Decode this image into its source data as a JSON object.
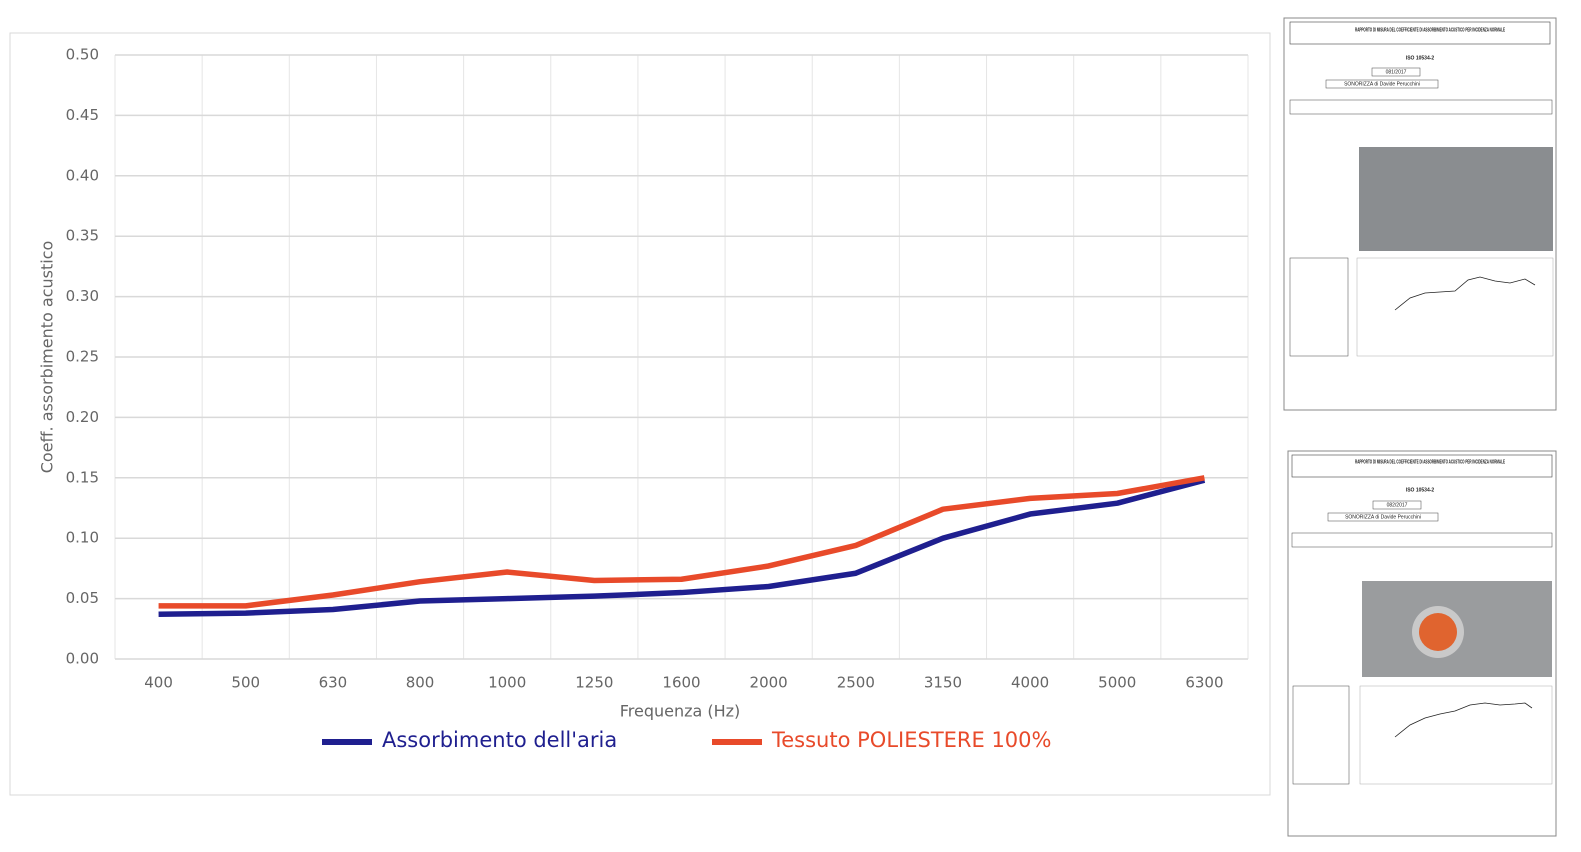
{
  "chart_data": {
    "type": "line",
    "x_label": "Frequenza (Hz)",
    "y_label": "Coeff. assorbimento acustico",
    "categories": [
      "400",
      "500",
      "630",
      "800",
      "1000",
      "1250",
      "1600",
      "2000",
      "2500",
      "3150",
      "4000",
      "5000",
      "6300"
    ],
    "series": [
      {
        "name": "Assorbimento dell'aria",
        "color": "#1f1f8f",
        "values": [
          0.037,
          0.038,
          0.041,
          0.048,
          0.05,
          0.052,
          0.055,
          0.06,
          0.071,
          0.1,
          0.12,
          0.129,
          0.148
        ]
      },
      {
        "name": "Tessuto POLIESTERE 100%",
        "color": "#e84a2a",
        "values": [
          0.044,
          0.044,
          0.053,
          0.064,
          0.072,
          0.065,
          0.066,
          0.077,
          0.094,
          0.124,
          0.133,
          0.137,
          0.15
        ]
      }
    ],
    "ylim": [
      0,
      0.5
    ],
    "yticks": [
      {
        "value": 0,
        "label": "0.00"
      },
      0.05,
      {
        "value": 0.1,
        "label": "0.10"
      },
      0.15,
      {
        "value": 0.2,
        "label": "0.20"
      },
      0.25,
      {
        "value": 0.3,
        "label": "0.30"
      },
      0.35,
      {
        "value": 0.4,
        "label": "0.40"
      },
      0.45,
      {
        "value": 0.5,
        "label": "0.50"
      }
    ],
    "grid": true,
    "legend": "bottom"
  },
  "documents": [
    {
      "title": "RAPPORTO DI MISURA DEL COEFFICIENTE DI ASSORBIMENTO ACUSTICO PER INCIDENZA NORMALE",
      "standard": "ISO 10534-2",
      "report": "081/2017",
      "client": "SONORIZZA di Davide Perucchini"
    },
    {
      "title": "RAPPORTO DI MISURA DEL COEFFICIENTE DI ASSORBIMENTO ACUSTICO PER INCIDENZA NORMALE",
      "standard": "ISO 10534-2",
      "report": "082/2017",
      "client": "SONORIZZA di Davide Perucchini"
    }
  ]
}
